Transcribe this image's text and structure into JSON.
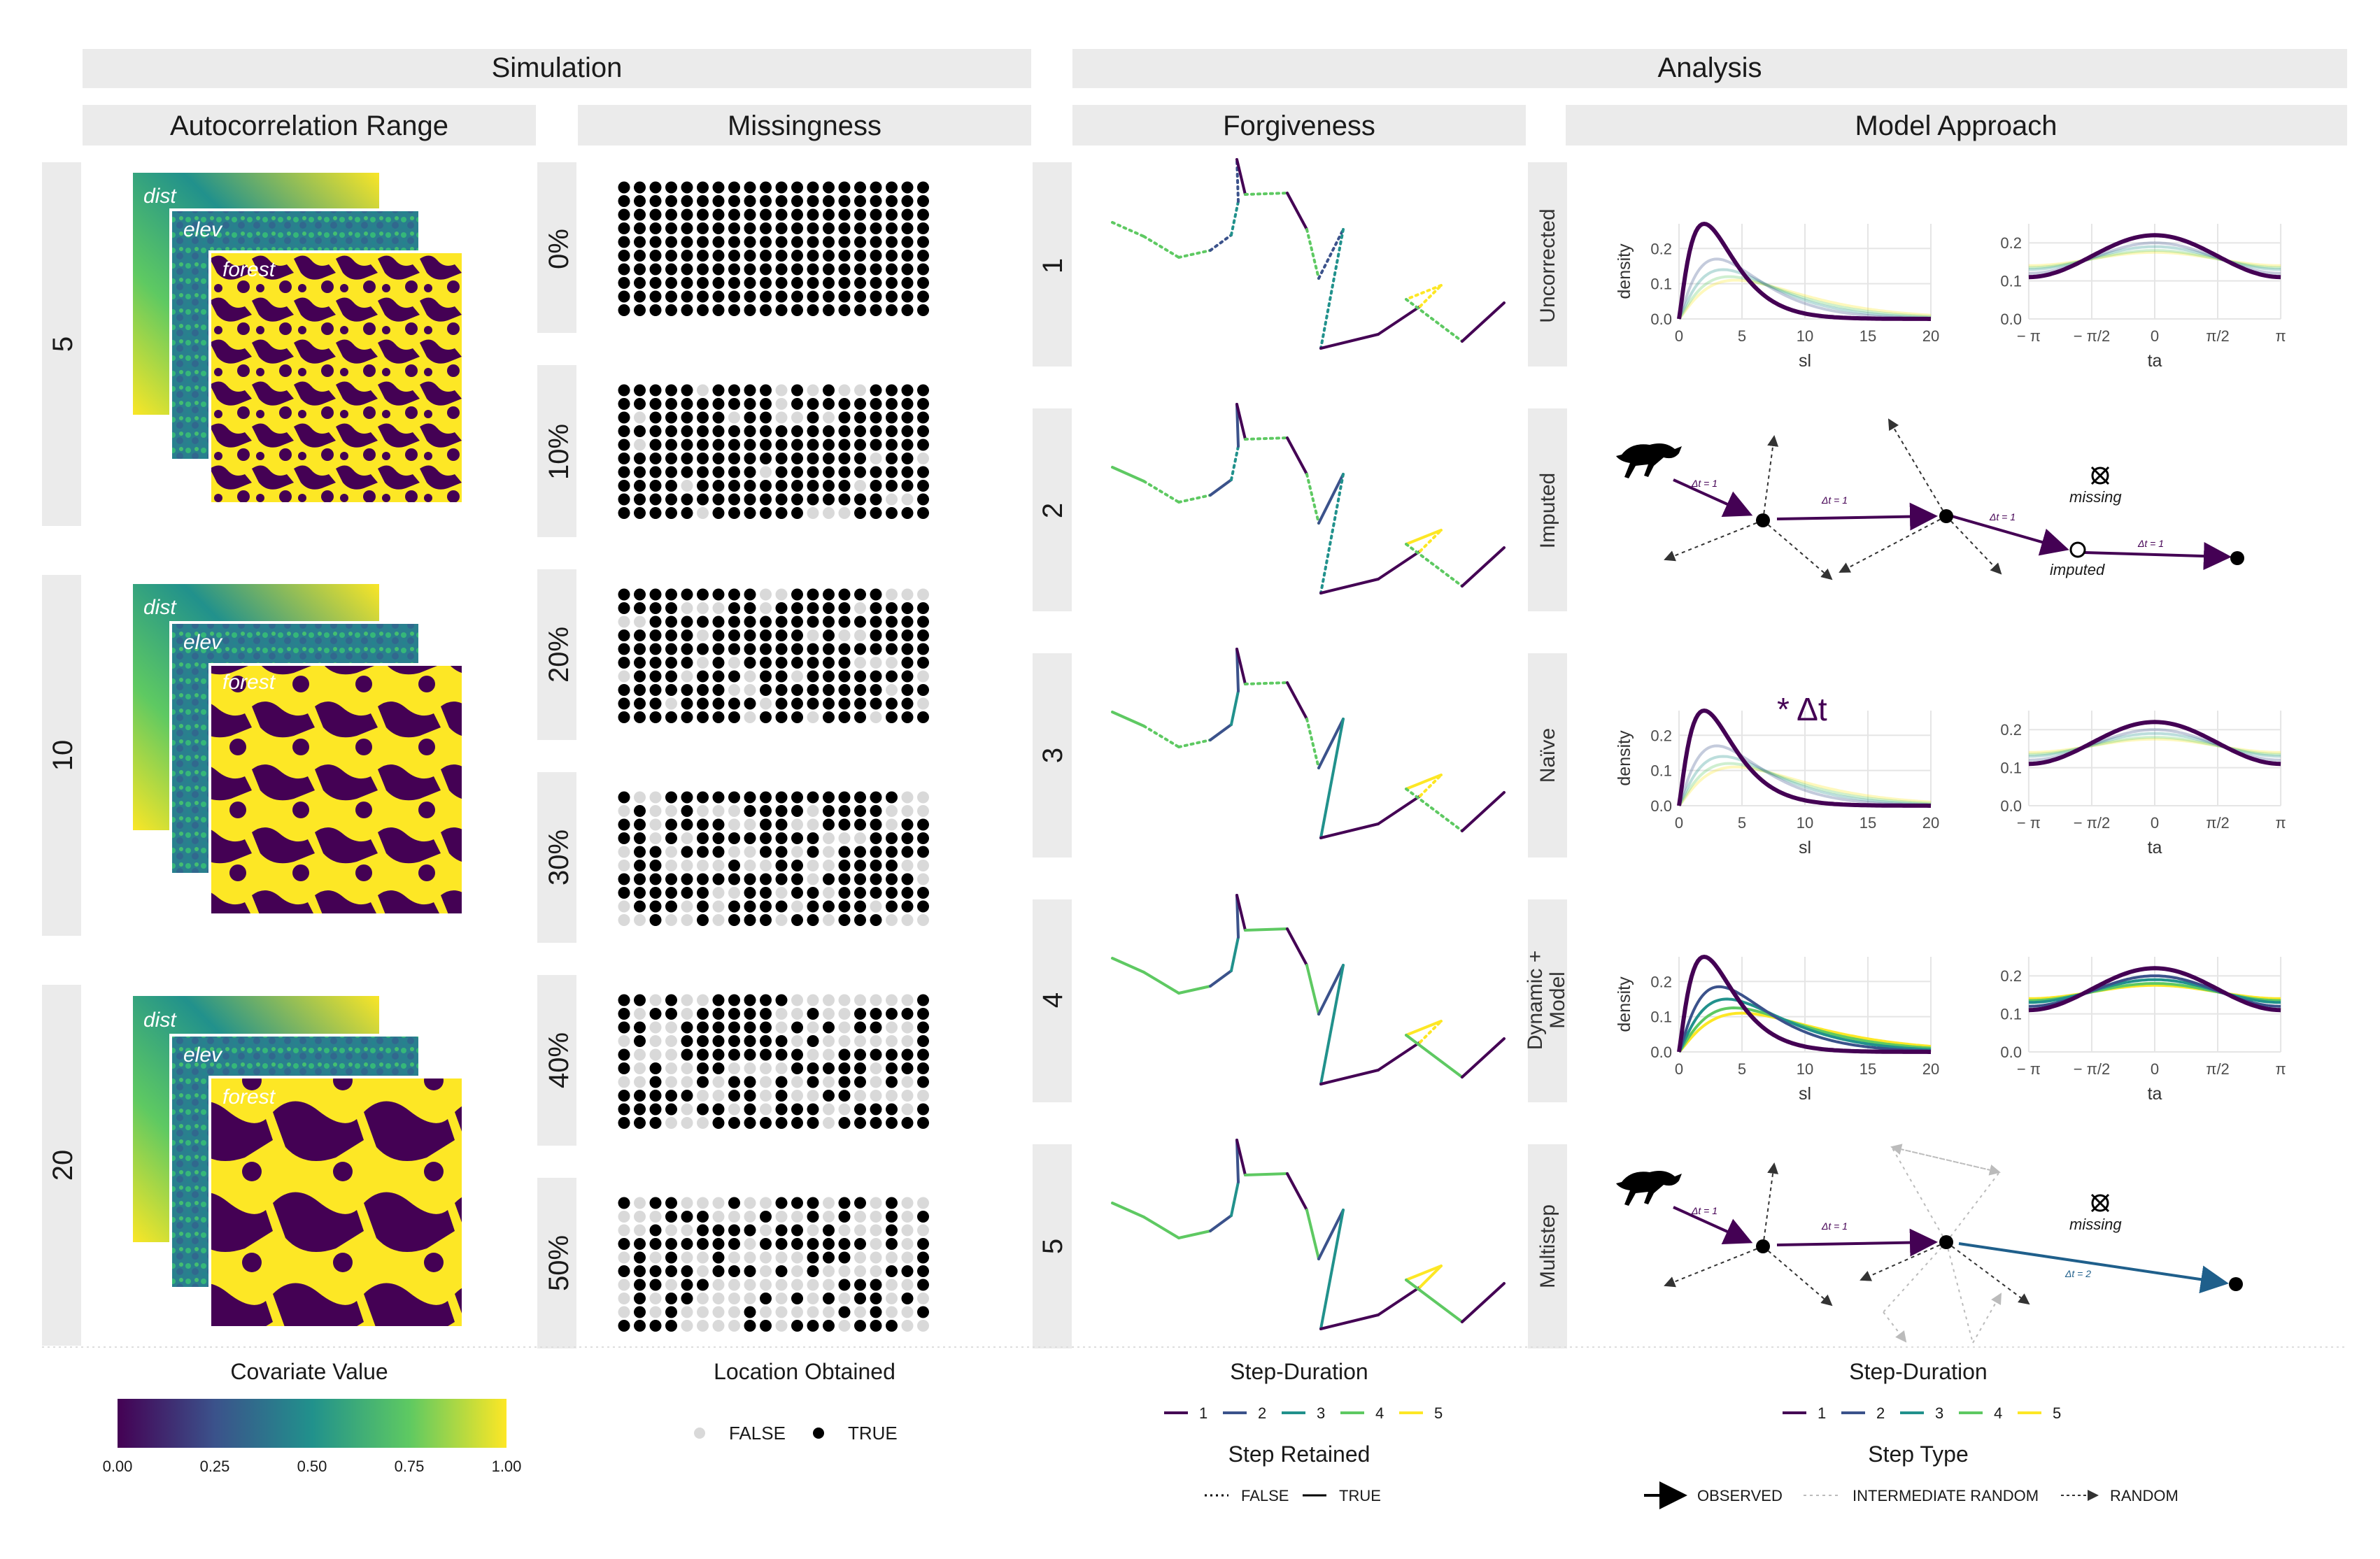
{
  "headers": {
    "simulation": "Simulation",
    "analysis": "Analysis"
  },
  "panels": {
    "autocorrelation": "Autocorrelation Range",
    "missingness": "Missingness",
    "forgiveness": "Forgiveness",
    "model_approach": "Model Approach"
  },
  "autocorrelation_rows": [
    "5",
    "10",
    "20"
  ],
  "layer_labels": {
    "dist": "dist",
    "elev": "elev",
    "forest": "forest"
  },
  "missingness_rows": [
    "0%",
    "10%",
    "20%",
    "30%",
    "40%",
    "50%"
  ],
  "forgiveness_rows": [
    "1",
    "2",
    "3",
    "4",
    "5"
  ],
  "model_rows": [
    "Uncorrected",
    "Imputed",
    "Naïve",
    "Dynamic +",
    "Model",
    "Multistep"
  ],
  "axes": {
    "density": "density",
    "sl": "sl",
    "ta": "ta",
    "sl_ticks": [
      "0",
      "5",
      "10",
      "15",
      "20"
    ],
    "ta_ticks": [
      "− π",
      "− π/2",
      "0",
      "π/2",
      "π"
    ],
    "y_ticks": [
      "0.0",
      "0.1",
      "0.2"
    ]
  },
  "diagram": {
    "missing": "missing",
    "imputed": "imputed",
    "dt1": "Δt = 1",
    "dt2": "Δt = 2",
    "naive_annot": "* Δt"
  },
  "legends": {
    "covariate_title": "Covariate Value",
    "covariate_ticks": [
      "0.00",
      "0.25",
      "0.50",
      "0.75",
      "1.00"
    ],
    "location_title": "Location Obtained",
    "location_keys": [
      "FALSE",
      "TRUE"
    ],
    "step_duration_title": "Step-Duration",
    "step_duration_keys": [
      "1",
      "2",
      "3",
      "4",
      "5"
    ],
    "step_retained_title": "Step Retained",
    "step_retained_keys": [
      "FALSE",
      "TRUE"
    ],
    "step_type_title": "Step Type",
    "step_type_keys": [
      "OBSERVED",
      "INTERMEDIATE RANDOM",
      "RANDOM"
    ]
  },
  "colors": {
    "d1": "#440154",
    "d2": "#3b528b",
    "d3": "#21918c",
    "d4": "#5ec962",
    "d5": "#fde725",
    "obtained": "#000000",
    "not_obtained": "#d9d9d9",
    "strip": "#ebebeb",
    "multistep_blue": "#1f5f8b"
  },
  "chart_data": [
    {
      "type": "line",
      "panel": "Uncorrected sl",
      "xlabel": "sl",
      "ylabel": "density",
      "xlim": [
        0,
        20
      ],
      "ylim": [
        0,
        0.27
      ],
      "series": [
        {
          "name": "1",
          "peak_x": 2,
          "peak_y": 0.27
        },
        {
          "name": "2",
          "peak_x": 3,
          "peak_y": 0.17
        },
        {
          "name": "3",
          "peak_x": 3.5,
          "peak_y": 0.14
        },
        {
          "name": "4",
          "peak_x": 4,
          "peak_y": 0.12
        },
        {
          "name": "5",
          "peak_x": 4.5,
          "peak_y": 0.11
        }
      ]
    },
    {
      "type": "line",
      "panel": "Uncorrected ta",
      "xlabel": "ta",
      "ylabel": "",
      "xlim": [
        -3.14,
        3.14
      ],
      "ylim": [
        0,
        0.25
      ],
      "series": [
        {
          "name": "1",
          "center_y": 0.22,
          "edge_y": 0.11
        },
        {
          "name": "2",
          "center_y": 0.2,
          "edge_y": 0.12
        },
        {
          "name": "3",
          "center_y": 0.19,
          "edge_y": 0.13
        },
        {
          "name": "4",
          "center_y": 0.18,
          "edge_y": 0.135
        },
        {
          "name": "5",
          "center_y": 0.175,
          "edge_y": 0.14
        }
      ]
    },
    {
      "type": "line",
      "panel": "Naive sl",
      "xlabel": "sl",
      "ylabel": "density",
      "xlim": [
        0,
        20
      ],
      "ylim": [
        0,
        0.27
      ],
      "series": [
        {
          "name": "1",
          "peak_x": 2,
          "peak_y": 0.27
        },
        {
          "name": "2",
          "peak_x": 3,
          "peak_y": 0.17
        },
        {
          "name": "3",
          "peak_x": 3.5,
          "peak_y": 0.14
        },
        {
          "name": "4",
          "peak_x": 4,
          "peak_y": 0.12
        },
        {
          "name": "5",
          "peak_x": 4.5,
          "peak_y": 0.11
        }
      ]
    },
    {
      "type": "line",
      "panel": "Naive ta",
      "xlabel": "ta",
      "ylabel": "",
      "xlim": [
        -3.14,
        3.14
      ],
      "ylim": [
        0,
        0.25
      ],
      "series": [
        {
          "name": "1",
          "center_y": 0.22,
          "edge_y": 0.11
        },
        {
          "name": "2",
          "center_y": 0.2,
          "edge_y": 0.12
        },
        {
          "name": "3",
          "center_y": 0.19,
          "edge_y": 0.13
        },
        {
          "name": "4",
          "center_y": 0.18,
          "edge_y": 0.135
        },
        {
          "name": "5",
          "center_y": 0.175,
          "edge_y": 0.14
        }
      ]
    },
    {
      "type": "line",
      "panel": "Dynamic sl",
      "xlabel": "sl",
      "ylabel": "density",
      "xlim": [
        0,
        20
      ],
      "ylim": [
        0,
        0.27
      ],
      "series": [
        {
          "name": "1",
          "peak_x": 2,
          "peak_y": 0.27
        },
        {
          "name": "2",
          "peak_x": 3.2,
          "peak_y": 0.185
        },
        {
          "name": "3",
          "peak_x": 3.8,
          "peak_y": 0.15
        },
        {
          "name": "4",
          "peak_x": 4.4,
          "peak_y": 0.125
        },
        {
          "name": "5",
          "peak_x": 5,
          "peak_y": 0.11
        }
      ]
    },
    {
      "type": "line",
      "panel": "Dynamic ta",
      "xlabel": "ta",
      "ylabel": "",
      "xlim": [
        -3.14,
        3.14
      ],
      "ylim": [
        0,
        0.25
      ],
      "series": [
        {
          "name": "1",
          "center_y": 0.22,
          "edge_y": 0.11
        },
        {
          "name": "2",
          "center_y": 0.2,
          "edge_y": 0.12
        },
        {
          "name": "3",
          "center_y": 0.19,
          "edge_y": 0.13
        },
        {
          "name": "4",
          "center_y": 0.18,
          "edge_y": 0.135
        },
        {
          "name": "5",
          "center_y": 0.175,
          "edge_y": 0.14
        }
      ]
    }
  ]
}
